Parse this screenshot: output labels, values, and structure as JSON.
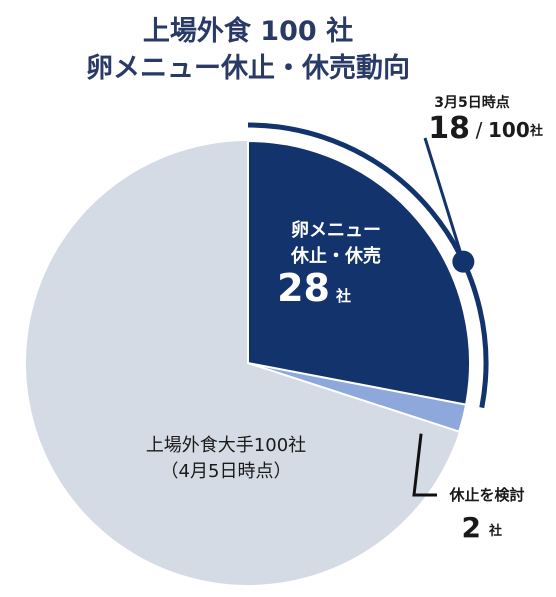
{
  "title": {
    "line1": "上場外食 100 社",
    "line2": "卵メニュー休止・休売動向"
  },
  "colors": {
    "suspended": "#12336b",
    "considering": "#8ea8dc",
    "others": "#d5dbe5",
    "title": "#2a3a66",
    "arc": "#12336b"
  },
  "chart_data": {
    "type": "pie",
    "total": 100,
    "total_unit": "社",
    "slices": [
      {
        "label_line1": "卵メニュー",
        "label_line2": "休止・休売",
        "value": 28,
        "unit": "社"
      },
      {
        "label": "休止を検討",
        "value": 2,
        "unit": "社"
      },
      {
        "label_line1": "上場外食大手100社",
        "label_line2": "（4月5日時点）",
        "value": 70
      }
    ],
    "annotation": {
      "date_label": "3月5日時点",
      "value": 18,
      "separator": "/",
      "total": 100,
      "unit": "社"
    }
  }
}
